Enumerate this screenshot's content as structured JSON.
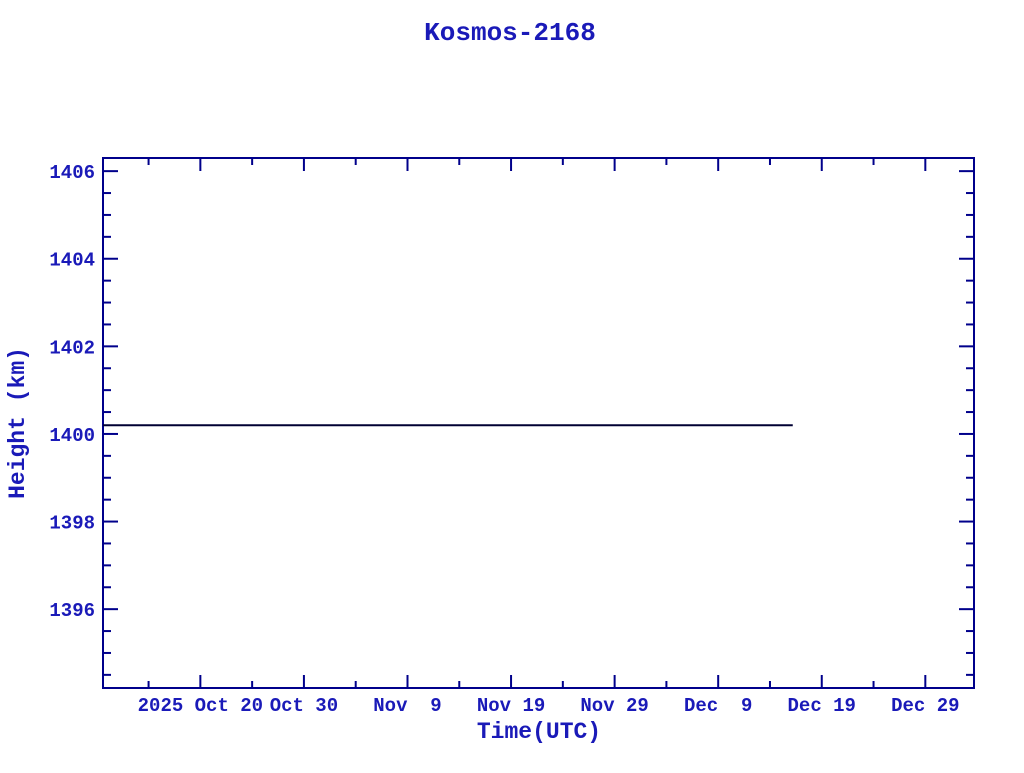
{
  "page": {
    "background": "#ffffff"
  },
  "colors": {
    "text": "#1a1ab8",
    "axis": "#00008b",
    "line": "#000033"
  },
  "chart_data": {
    "type": "line",
    "title": "Kosmos-2168",
    "xlabel": "Time(UTC)",
    "ylabel": "Height (km)",
    "grid": "off",
    "legend": "none",
    "x_axis": {
      "unit": "days relative to 2025 Oct 20",
      "domain": [
        -9.4,
        74.7
      ],
      "major_ticks": [
        {
          "day": 0,
          "label": "2025 Oct 20"
        },
        {
          "day": 10,
          "label": "Oct 30"
        },
        {
          "day": 20,
          "label": "Nov  9"
        },
        {
          "day": 30,
          "label": "Nov 19"
        },
        {
          "day": 40,
          "label": "Nov 29"
        },
        {
          "day": 50,
          "label": "Dec  9"
        },
        {
          "day": 60,
          "label": "Dec 19"
        },
        {
          "day": 70,
          "label": "Dec 29"
        }
      ],
      "minor_tick_days": [
        -5,
        5,
        15,
        25,
        35,
        45,
        55,
        65
      ]
    },
    "y_axis": {
      "domain": [
        1394.2,
        1406.3
      ],
      "major_ticks": [
        1396,
        1398,
        1400,
        1402,
        1404,
        1406
      ],
      "minor_step": 0.5
    },
    "series": [
      {
        "name": "height",
        "value_km": 1400.2,
        "start": {
          "day": -9.4,
          "approx_date": "2025 Oct 11"
        },
        "end": {
          "day": 57.2,
          "approx_date": "2025 Dec 16"
        },
        "points": [
          [
            -9.4,
            1400.2
          ],
          [
            57.2,
            1400.2
          ]
        ]
      }
    ]
  }
}
